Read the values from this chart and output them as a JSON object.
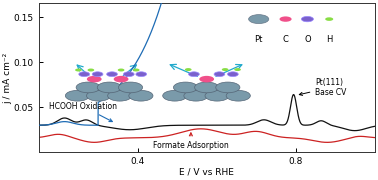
{
  "xlabel": "E / V vs RHE",
  "ylabel": "j / mA cm⁻²",
  "xlim": [
    0.15,
    1.0
  ],
  "ylim": [
    0.0,
    0.165
  ],
  "yticks": [
    0.05,
    0.1,
    0.15
  ],
  "xticks": [
    0.4,
    0.8
  ],
  "bg_color": "#ffffff",
  "blue_color": "#1e6cb5",
  "red_color": "#cc2222",
  "black_color": "#111111",
  "legend_labels": [
    "Pt",
    "C",
    "O",
    "H"
  ],
  "pt_color": "#7a9aaa",
  "c_color": "#f0508a",
  "o_color": "#7a60cc",
  "h_color": "#88dd44",
  "annotation_hcooh": "HCOOH Oxidation",
  "annotation_formate": "Formate Adsorption",
  "annotation_ptcv": "Pt(111)\nBase CV",
  "arrow_color": "#22aacc"
}
